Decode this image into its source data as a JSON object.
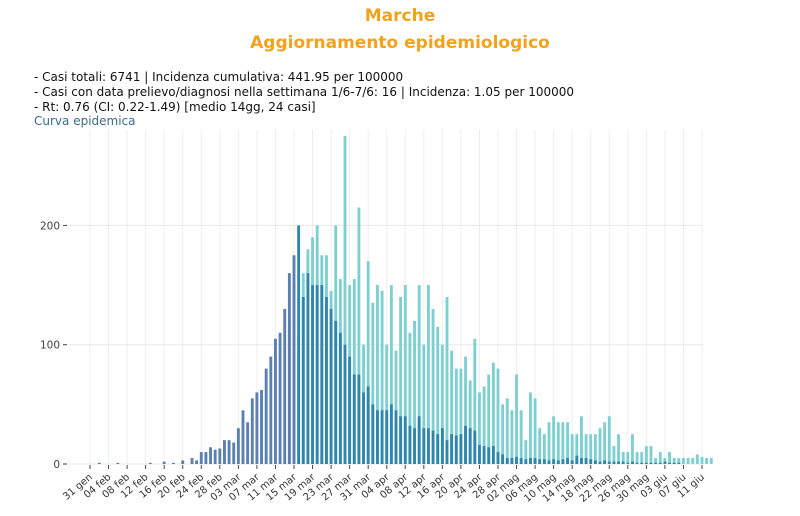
{
  "header": {
    "title": "Marche",
    "subtitle": "Aggiornamento epidemiologico"
  },
  "info": {
    "line1": "- Casi totali: 6741 | Incidenza cumulativa: 441.95 per 100000",
    "line2": "- Casi con data prelievo/diagnosi nella settimana 1/6-7/6: 16 | Incidenza: 1.05 per 100000",
    "line3": "- Rt: 0.76 (CI: 0.22-1.49) [medio 14gg, 24 casi]"
  },
  "section_label": "Curva epidemica",
  "colors": {
    "title": "#f2a21b",
    "series_dark": "#2f86ad",
    "series_light": "#7ecfd1",
    "early_bars": "#5b7fb0"
  },
  "chart_data": {
    "type": "bar",
    "ylim": [
      0,
      280
    ],
    "yticks": [
      0,
      100,
      200
    ],
    "xtick_labels": [
      "31 gen",
      "04 feb",
      "08 feb",
      "12 feb",
      "16 feb",
      "20 feb",
      "24 feb",
      "28 feb",
      "03 mar",
      "07 mar",
      "11 mar",
      "15 mar",
      "19 mar",
      "23 mar",
      "27 mar",
      "31 mar",
      "04 apr",
      "08 apr",
      "12 apr",
      "16 apr",
      "20 apr",
      "24 apr",
      "28 apr",
      "02 mag",
      "06 mag",
      "10 mag",
      "14 mag",
      "18 mag",
      "22 mag",
      "26 mag",
      "30 mag",
      "03 giu",
      "07 giu",
      "11 giu"
    ],
    "grid": true,
    "legend": "none",
    "series": [
      {
        "values": [
          0,
          0,
          1,
          0,
          0,
          0,
          1,
          0,
          0,
          0,
          0,
          0,
          0,
          1,
          0,
          0,
          2,
          0,
          1,
          0,
          3,
          0,
          5,
          3,
          10,
          10,
          14,
          12,
          13,
          20,
          20,
          18,
          30,
          45,
          35,
          55,
          60,
          62,
          80,
          90,
          105,
          110,
          130,
          160,
          175,
          200,
          140,
          160,
          150,
          150,
          150,
          140,
          130,
          120,
          110,
          100,
          90,
          75,
          75,
          60,
          65,
          50,
          45,
          45,
          45,
          50,
          45,
          40,
          40,
          32,
          30,
          40,
          30,
          30,
          28,
          25,
          30,
          20,
          25,
          24,
          25,
          32,
          30,
          28,
          16,
          15,
          14,
          15,
          10,
          8,
          5,
          5,
          6,
          5,
          4,
          5,
          5,
          4,
          4,
          3,
          4,
          3,
          4,
          5,
          3,
          7,
          5,
          5,
          4,
          3,
          2,
          3,
          2,
          2,
          2,
          2,
          1,
          2,
          1,
          1,
          1,
          1,
          1,
          1,
          2,
          1,
          1,
          1,
          0,
          0,
          0
        ]
      },
      {
        "values": [
          0,
          0,
          0,
          0,
          0,
          0,
          0,
          0,
          0,
          0,
          0,
          0,
          0,
          0,
          0,
          0,
          0,
          0,
          0,
          0,
          0,
          0,
          0,
          0,
          0,
          0,
          0,
          0,
          0,
          0,
          0,
          0,
          0,
          0,
          0,
          0,
          0,
          0,
          0,
          0,
          0,
          0,
          0,
          120,
          150,
          110,
          160,
          180,
          190,
          200,
          175,
          175,
          145,
          200,
          155,
          275,
          150,
          155,
          215,
          100,
          170,
          135,
          150,
          145,
          100,
          150,
          95,
          140,
          150,
          110,
          120,
          150,
          100,
          150,
          130,
          115,
          100,
          140,
          95,
          80,
          80,
          90,
          70,
          105,
          60,
          65,
          75,
          85,
          80,
          50,
          55,
          45,
          75,
          45,
          20,
          60,
          55,
          30,
          25,
          35,
          40,
          35,
          35,
          35,
          25,
          25,
          40,
          25,
          25,
          25,
          30,
          35,
          40,
          15,
          25,
          10,
          10,
          25,
          10,
          10,
          15,
          15,
          5,
          10,
          5,
          10,
          5,
          5,
          5,
          5,
          5,
          8,
          6,
          5,
          5
        ]
      }
    ]
  }
}
